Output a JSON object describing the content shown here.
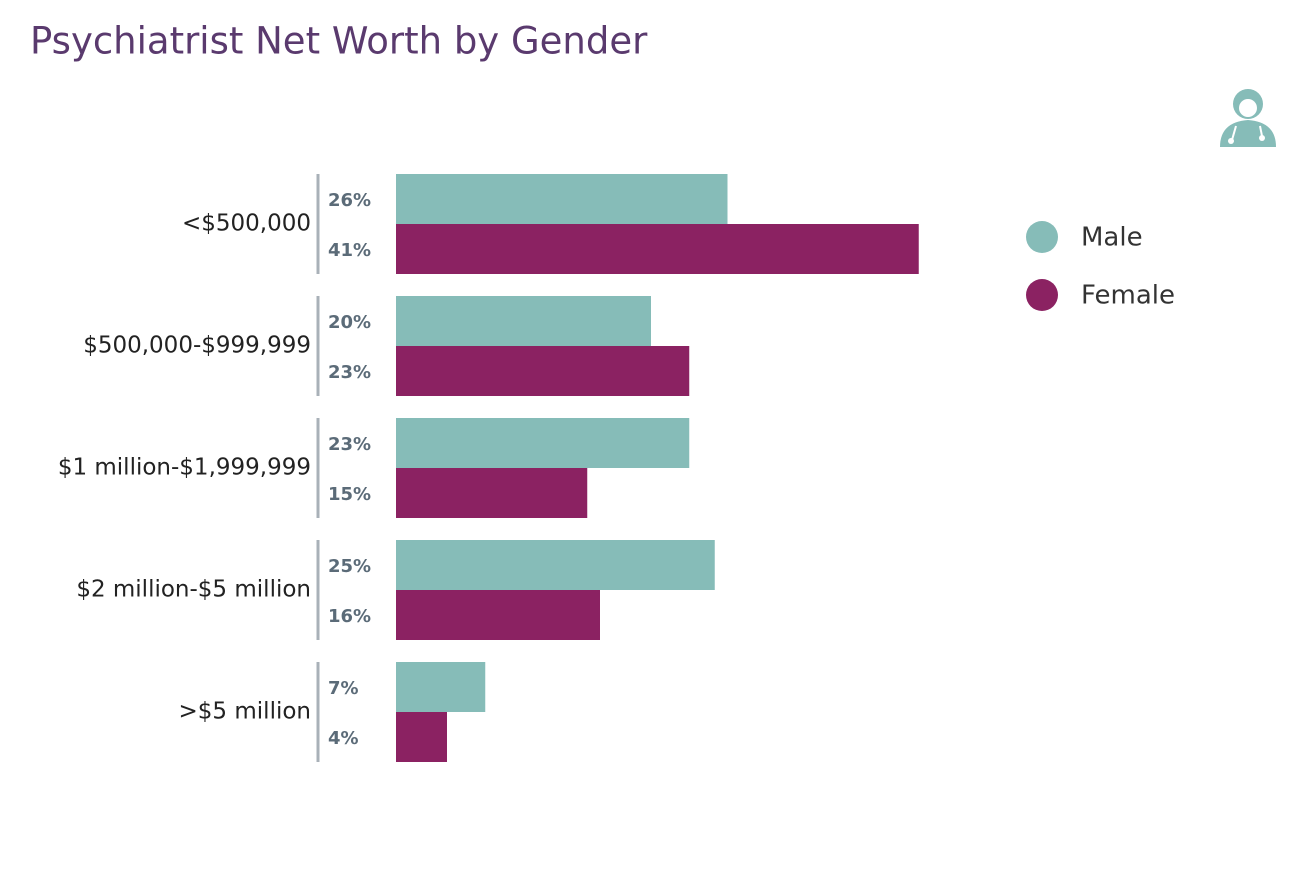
{
  "chart_data": {
    "type": "bar",
    "orientation": "horizontal",
    "title": "Psychiatrist Net Worth by Gender",
    "categories": [
      "<$500,000",
      "$500,000-$999,999",
      "$1 million-$1,999,999",
      "$2 million-$5 million",
      ">$5 million"
    ],
    "series": [
      {
        "name": "Male",
        "color": "#86bcb8",
        "values": [
          26,
          20,
          23,
          25,
          7
        ],
        "value_labels": [
          "26%",
          "20%",
          "23%",
          "25%",
          "7%"
        ]
      },
      {
        "name": "Female",
        "color": "#8b2262",
        "values": [
          41,
          23,
          15,
          16,
          4
        ],
        "value_labels": [
          "41%",
          "23%",
          "15%",
          "16%",
          "4%"
        ]
      }
    ],
    "legend": "top-right"
  }
}
